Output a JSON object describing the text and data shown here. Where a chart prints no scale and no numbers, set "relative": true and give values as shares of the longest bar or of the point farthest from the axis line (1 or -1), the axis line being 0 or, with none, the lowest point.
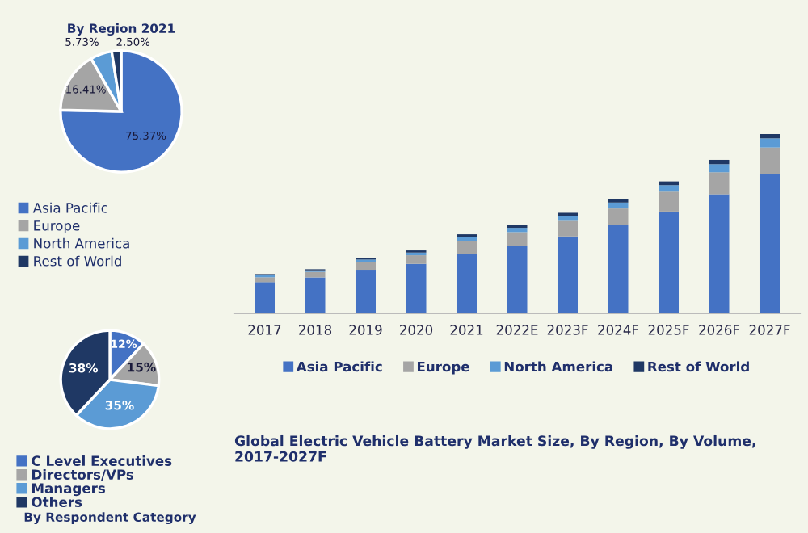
{
  "chart_data": [
    {
      "type": "pie",
      "title": "By Region 2021",
      "categories": [
        "Asia Pacific",
        "Europe",
        "North America",
        "Rest of World"
      ],
      "values": [
        75.37,
        16.41,
        5.73,
        2.5
      ],
      "value_labels": [
        "75.37%",
        "16.41%",
        "5.73%",
        "2.50%"
      ],
      "colors": [
        "#4472c4",
        "#a5a5a5",
        "#5b9bd5",
        "#1f3864"
      ],
      "legend": "bottom"
    },
    {
      "type": "pie",
      "title": "By Respondent Category",
      "categories": [
        "C Level Executives",
        "Directors/VPs",
        "Managers",
        "Others"
      ],
      "values": [
        12,
        15,
        35,
        38
      ],
      "value_labels": [
        "12%",
        "15%",
        "35%",
        "38%"
      ],
      "colors": [
        "#4472c4",
        "#a5a5a5",
        "#5b9bd5",
        "#1f3864"
      ],
      "legend": "bottom"
    },
    {
      "type": "bar",
      "title": "Global Electric Vehicle Battery Market Size, By Region, By Volume, 2017-2027F",
      "categories": [
        "2017",
        "2018",
        "2019",
        "2020",
        "2021",
        "2022E",
        "2023F",
        "2024F",
        "2025F",
        "2026F",
        "2027F"
      ],
      "stacked": true,
      "relative": true,
      "legend": "bottom",
      "series": [
        {
          "name": "Asia Pacific",
          "color": "#4472c4",
          "values": [
            0.174,
            0.201,
            0.243,
            0.276,
            0.33,
            0.375,
            0.429,
            0.492,
            0.568,
            0.664,
            0.778
          ]
        },
        {
          "name": "Europe",
          "color": "#a5a5a5",
          "values": [
            0.027,
            0.03,
            0.042,
            0.048,
            0.075,
            0.078,
            0.087,
            0.093,
            0.111,
            0.123,
            0.147
          ]
        },
        {
          "name": "North America",
          "color": "#5b9bd5",
          "values": [
            0.012,
            0.009,
            0.015,
            0.015,
            0.021,
            0.024,
            0.027,
            0.033,
            0.036,
            0.045,
            0.051
          ]
        },
        {
          "name": "Rest of World",
          "color": "#1f3864",
          "values": [
            0.006,
            0.006,
            0.009,
            0.012,
            0.015,
            0.018,
            0.018,
            0.018,
            0.021,
            0.024,
            0.024
          ]
        }
      ]
    }
  ]
}
